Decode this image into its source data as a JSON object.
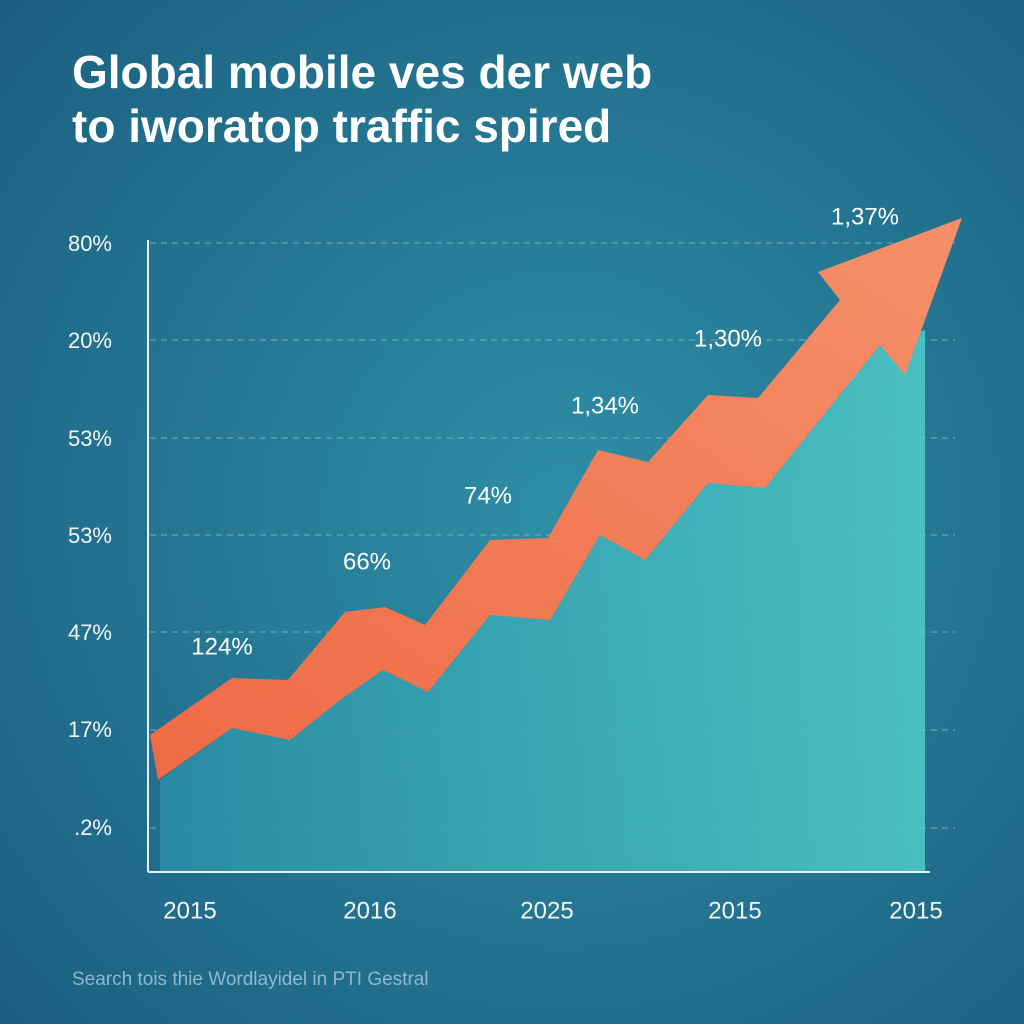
{
  "title": [
    "Global mobile ves der web",
    "to iworatop traffic spired"
  ],
  "y_axis_labels": [
    "80%",
    "20%",
    "53%",
    "53%",
    "47%",
    "17%",
    ".2%"
  ],
  "x_axis_labels": [
    "2015",
    "2016",
    "2025",
    "2015",
    "2015"
  ],
  "point_labels": [
    "124%",
    "66%",
    "74%",
    "1,34%",
    "1,30%",
    "1,37%"
  ],
  "footer": "Search tois thie Wordlayidel in PTI Gestral"
}
